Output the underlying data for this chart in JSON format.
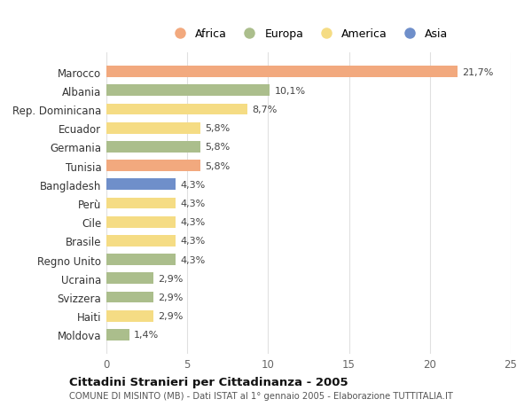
{
  "countries": [
    "Marocco",
    "Albania",
    "Rep. Dominicana",
    "Ecuador",
    "Germania",
    "Tunisia",
    "Bangladesh",
    "Perù",
    "Cile",
    "Brasile",
    "Regno Unito",
    "Ucraina",
    "Svizzera",
    "Haiti",
    "Moldova"
  ],
  "values": [
    21.7,
    10.1,
    8.7,
    5.8,
    5.8,
    5.8,
    4.3,
    4.3,
    4.3,
    4.3,
    4.3,
    2.9,
    2.9,
    2.9,
    1.4
  ],
  "labels": [
    "21,7%",
    "10,1%",
    "8,7%",
    "5,8%",
    "5,8%",
    "5,8%",
    "4,3%",
    "4,3%",
    "4,3%",
    "4,3%",
    "4,3%",
    "2,9%",
    "2,9%",
    "2,9%",
    "1,4%"
  ],
  "continents": [
    "Africa",
    "Europa",
    "America",
    "America",
    "Europa",
    "Africa",
    "Asia",
    "America",
    "America",
    "America",
    "Europa",
    "Europa",
    "Europa",
    "America",
    "Europa"
  ],
  "colors": {
    "Africa": "#F2A97E",
    "Europa": "#ABBE8C",
    "America": "#F5DC84",
    "Asia": "#6F8FCA"
  },
  "legend_order": [
    "Africa",
    "Europa",
    "America",
    "Asia"
  ],
  "xlim": [
    0,
    25
  ],
  "xticks": [
    0,
    5,
    10,
    15,
    20,
    25
  ],
  "title": "Cittadini Stranieri per Cittadinanza - 2005",
  "subtitle": "COMUNE DI MISINTO (MB) - Dati ISTAT al 1° gennaio 2005 - Elaborazione TUTTITALIA.IT",
  "background_color": "#ffffff",
  "bar_height": 0.6
}
